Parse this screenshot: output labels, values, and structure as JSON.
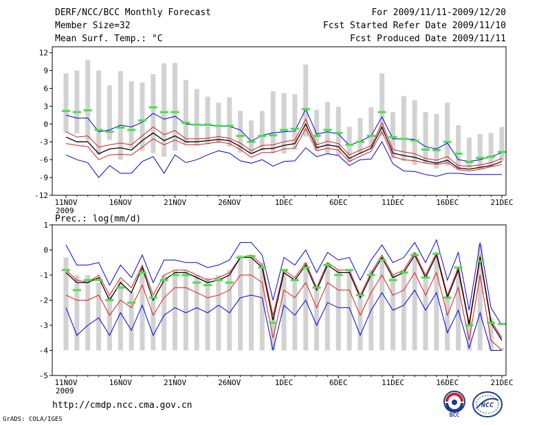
{
  "header": {
    "title": "DERF/NCC/BCC Monthly Forecast",
    "member_size": "Member Size=32",
    "variable1": "Mean Surf. Temp.: °C",
    "period": "For 2009/11/11-2009/12/20",
    "started": "Fcst Started Refer Date 2009/11/10",
    "produced": "Fcst Produced Date 2009/11/11"
  },
  "footer": {
    "url": "http://cmdp.ncc.cma.gov.cn",
    "credit": "GrADS: COLA/IGES",
    "logo_bcc": "BCC",
    "logo_ncc": "NCC"
  },
  "colors": {
    "bar": "#d2d2d2",
    "mean": "#000000",
    "spread": "#e01818",
    "envelope": "#0000e0",
    "clim": "#44e244"
  },
  "chart_data": [
    {
      "type": "line",
      "title": "Mean Surf. Temp.: °C",
      "ylim": [
        -12,
        13
      ],
      "yticks": [
        -12,
        -9,
        -6,
        -3,
        0,
        3,
        6,
        9,
        12
      ],
      "xticks": [
        {
          "day": 0,
          "label": "11NOV",
          "sub": "2009"
        },
        {
          "day": 5,
          "label": "16NOV"
        },
        {
          "day": 10,
          "label": "21NOV"
        },
        {
          "day": 15,
          "label": "26NOV"
        },
        {
          "day": 20,
          "label": "1DEC"
        },
        {
          "day": 25,
          "label": "6DEC"
        },
        {
          "day": 30,
          "label": "11DEC"
        },
        {
          "day": 35,
          "label": "16DEC"
        },
        {
          "day": 40,
          "label": "21DEC"
        }
      ],
      "bar_top": [
        8.5,
        9.0,
        10.8,
        9.0,
        6.5,
        8.9,
        7.2,
        7.0,
        8.4,
        10.2,
        10.3,
        7.4,
        5.9,
        4.6,
        3.6,
        4.5,
        2.2,
        0.6,
        2.2,
        5.5,
        5.2,
        5.0,
        10.0,
        2.4,
        3.7,
        2.9,
        -0.5,
        1.0,
        2.8,
        8.5,
        2.0,
        4.7,
        4.0,
        2.0,
        1.7,
        3.6,
        -0.2,
        -2.3,
        -1.7,
        -1.5,
        -0.5
      ],
      "bar_bottom": [
        -1.5,
        -1.6,
        -2.8,
        -5.2,
        -2.7,
        -6.0,
        -4.1,
        -4.5,
        -4.9,
        -5.5,
        -4.5,
        -3.3,
        -3.6,
        -3.4,
        -3.2,
        -3.8,
        -4.8,
        -5.0,
        -4.5,
        -4.9,
        -5.0,
        -4.3,
        -2.1,
        -4.5,
        -5.0,
        -5.3,
        -6.5,
        -5.0,
        -4.0,
        -2.0,
        -5.9,
        -6.2,
        -6.9,
        -6.6,
        -7.5,
        -7.0,
        -7.7,
        -7.4,
        -7.6,
        -7.0,
        -6.2
      ],
      "upper": [
        1.5,
        1.0,
        1.0,
        -1.3,
        -1.0,
        -0.2,
        -0.5,
        0.3,
        1.8,
        0.8,
        1.3,
        0.0,
        -0.2,
        -0.2,
        -0.3,
        -0.4,
        -1.0,
        -2.9,
        -1.9,
        -1.5,
        -1.3,
        -1.2,
        2.5,
        -1.7,
        -1.3,
        -1.7,
        -3.6,
        -2.9,
        -2.0,
        1.2,
        -2.5,
        -2.5,
        -2.6,
        -3.8,
        -4.2,
        -3.2,
        -6.0,
        -6.3,
        -6.0,
        -5.5,
        -4.8
      ],
      "red_upper": [
        -1.3,
        -2.2,
        -2.0,
        -3.9,
        -3.5,
        -3.2,
        -3.5,
        -2.0,
        -0.5,
        -1.8,
        -1.1,
        -2.5,
        -2.5,
        -2.4,
        -2.1,
        -2.4,
        -3.2,
        -4.5,
        -3.6,
        -3.5,
        -3.0,
        -2.7,
        0.8,
        -3.5,
        -2.9,
        -3.3,
        -5.2,
        -4.4,
        -3.7,
        0.2,
        -4.3,
        -4.7,
        -5.0,
        -5.8,
        -6.1,
        -5.5,
        -7.0,
        -7.1,
        -6.9,
        -6.5,
        -5.8
      ],
      "mean": [
        -2.2,
        -3.0,
        -3.0,
        -5.0,
        -4.2,
        -4.0,
        -4.4,
        -2.8,
        -1.5,
        -2.8,
        -2.0,
        -3.0,
        -3.0,
        -2.8,
        -2.6,
        -2.8,
        -3.8,
        -5.0,
        -4.2,
        -4.1,
        -3.6,
        -3.3,
        0.0,
        -4.0,
        -3.5,
        -3.8,
        -5.8,
        -4.9,
        -4.1,
        -0.5,
        -4.9,
        -5.3,
        -5.6,
        -6.2,
        -6.6,
        -6.1,
        -7.4,
        -7.6,
        -7.3,
        -7.0,
        -6.3
      ],
      "red_lower": [
        -3.3,
        -3.6,
        -3.8,
        -6.0,
        -5.2,
        -5.1,
        -5.2,
        -3.9,
        -2.5,
        -3.5,
        -2.7,
        -3.5,
        -3.5,
        -3.3,
        -3.0,
        -3.3,
        -4.3,
        -5.6,
        -4.8,
        -4.8,
        -4.2,
        -4.1,
        -0.8,
        -4.5,
        -4.1,
        -4.4,
        -6.3,
        -5.4,
        -4.6,
        -1.3,
        -5.5,
        -6.0,
        -6.2,
        -6.6,
        -6.8,
        -6.5,
        -7.7,
        -7.9,
        -7.6,
        -7.2,
        -6.8
      ],
      "lower": [
        -5.2,
        -6.0,
        -6.5,
        -9.0,
        -7.0,
        -8.3,
        -8.3,
        -6.3,
        -5.5,
        -8.3,
        -5.2,
        -6.5,
        -6.0,
        -5.2,
        -4.5,
        -4.9,
        -6.2,
        -6.6,
        -6.0,
        -7.1,
        -6.3,
        -6.2,
        -4.0,
        -5.5,
        -5.0,
        -5.3,
        -7.0,
        -6.0,
        -5.9,
        -3.0,
        -6.7,
        -7.9,
        -8.0,
        -8.5,
        -8.8,
        -8.3,
        -8.3,
        -8.5,
        -8.5,
        -8.5,
        -8.5
      ],
      "clim": [
        2.2,
        2.0,
        2.3,
        -1.0,
        -1.3,
        -0.6,
        -1.0,
        0.6,
        2.8,
        2.0,
        2.0,
        0.2,
        -0.1,
        -0.1,
        -0.3,
        -0.3,
        -2.0,
        -3.0,
        -2.0,
        -1.9,
        -1.0,
        -0.8,
        2.5,
        -2.0,
        -1.0,
        -1.5,
        -3.5,
        -3.0,
        -2.0,
        2.0,
        -2.2,
        -2.5,
        -2.8,
        -4.3,
        -4.4,
        -3.0,
        -5.0,
        -6.4,
        -5.7,
        -5.5,
        -4.7
      ]
    },
    {
      "type": "line",
      "title": "Prec.: log(mm/d)",
      "ylim": [
        -5,
        1
      ],
      "yticks": [
        -5,
        -4,
        -3,
        -2,
        -1,
        0,
        1
      ],
      "xticks": [
        {
          "day": 0,
          "label": "11NOV",
          "sub": "2009"
        },
        {
          "day": 5,
          "label": "16NOV"
        },
        {
          "day": 10,
          "label": "21NOV"
        },
        {
          "day": 15,
          "label": "26NOV"
        },
        {
          "day": 20,
          "label": "1DEC"
        },
        {
          "day": 25,
          "label": "6DEC"
        },
        {
          "day": 30,
          "label": "11DEC"
        },
        {
          "day": 35,
          "label": "16DEC"
        },
        {
          "day": 40,
          "label": "21DEC"
        }
      ],
      "bar_top": [
        -0.3,
        -1.0,
        -1.0,
        -1.3,
        -1.8,
        -1.2,
        -1.7,
        -0.8,
        -1.9,
        -1.0,
        -0.8,
        -0.8,
        -1.0,
        -1.1,
        -1.0,
        -0.8,
        -0.2,
        -0.2,
        -0.5,
        -2.6,
        -0.8,
        -1.1,
        -0.5,
        -1.5,
        -0.5,
        -0.8,
        -0.8,
        -1.8,
        -0.8,
        -0.3,
        -1.0,
        -0.8,
        -0.1,
        -1.0,
        -0.3,
        -1.8,
        -0.7,
        -2.8,
        0.2,
        -2.7,
        -3.9
      ],
      "bar_bottom": [
        -4.0,
        -4.0,
        -4.0,
        -4.0,
        -4.0,
        -4.0,
        -4.0,
        -4.0,
        -4.0,
        -4.0,
        -4.0,
        -4.0,
        -4.0,
        -4.0,
        -4.0,
        -4.0,
        -4.0,
        -4.0,
        -4.0,
        -4.0,
        -4.0,
        -4.0,
        -4.0,
        -4.0,
        -4.0,
        -4.0,
        -4.0,
        -4.0,
        -4.0,
        -4.0,
        -4.0,
        -4.0,
        -4.0,
        -4.0,
        -4.0,
        -4.0,
        -4.0,
        -4.0,
        -4.0,
        -4.0,
        -4.0
      ],
      "upper": [
        0.2,
        -0.6,
        -0.6,
        -0.5,
        -1.4,
        -0.6,
        -1.1,
        -0.2,
        -1.3,
        -0.4,
        -0.4,
        -0.5,
        -0.5,
        -0.7,
        -0.6,
        -0.4,
        0.3,
        0.3,
        -0.2,
        -2.0,
        -0.3,
        -0.6,
        0.0,
        -0.9,
        -0.1,
        -0.4,
        -0.3,
        -1.2,
        -0.4,
        0.2,
        -0.5,
        -0.3,
        0.3,
        -0.5,
        0.4,
        -1.2,
        -0.1,
        -2.4,
        0.3,
        -2.3,
        -3.0
      ],
      "red_upper": [
        -0.8,
        -1.2,
        -1.3,
        -1.0,
        -1.8,
        -1.1,
        -1.5,
        -0.6,
        -1.8,
        -1.0,
        -0.8,
        -0.8,
        -1.0,
        -1.2,
        -1.1,
        -0.9,
        -0.3,
        -0.2,
        -0.6,
        -2.6,
        -0.8,
        -1.1,
        -0.5,
        -1.5,
        -0.5,
        -0.8,
        -0.8,
        -1.8,
        -0.9,
        -0.2,
        -1.0,
        -0.8,
        -0.1,
        -1.0,
        -0.1,
        -1.8,
        -0.7,
        -2.9,
        -0.2,
        -2.8,
        -3.5
      ],
      "mean": [
        -0.9,
        -1.3,
        -1.3,
        -1.1,
        -2.0,
        -1.3,
        -1.7,
        -0.7,
        -2.0,
        -1.2,
        -0.9,
        -0.9,
        -1.1,
        -1.3,
        -1.2,
        -1.0,
        -0.3,
        -0.3,
        -0.7,
        -2.8,
        -0.9,
        -1.2,
        -0.6,
        -1.6,
        -0.6,
        -0.9,
        -0.9,
        -1.9,
        -1.0,
        -0.3,
        -1.1,
        -0.9,
        -0.2,
        -1.1,
        -0.2,
        -1.9,
        -0.8,
        -3.0,
        -0.3,
        -2.9,
        -3.6
      ],
      "red_lower": [
        -1.8,
        -2.0,
        -2.0,
        -1.8,
        -2.6,
        -2.0,
        -2.3,
        -1.4,
        -2.6,
        -1.9,
        -1.5,
        -1.5,
        -1.7,
        -1.9,
        -1.8,
        -1.6,
        -1.0,
        -1.0,
        -1.3,
        -3.5,
        -1.6,
        -1.9,
        -1.3,
        -2.3,
        -1.3,
        -1.6,
        -1.6,
        -2.6,
        -1.7,
        -1.0,
        -1.8,
        -1.6,
        -0.9,
        -1.8,
        -0.9,
        -2.6,
        -1.5,
        -3.6,
        -1.0,
        -3.6,
        -4.0
      ],
      "lower": [
        -2.3,
        -3.4,
        -3.0,
        -2.7,
        -3.4,
        -2.5,
        -3.2,
        -2.2,
        -3.4,
        -2.6,
        -2.3,
        -2.5,
        -2.3,
        -2.5,
        -2.2,
        -2.5,
        -1.9,
        -1.8,
        -1.9,
        -4.0,
        -2.2,
        -2.6,
        -2.0,
        -3.0,
        -2.1,
        -2.3,
        -2.3,
        -3.4,
        -2.4,
        -1.7,
        -2.4,
        -2.2,
        -1.6,
        -2.4,
        -1.7,
        -3.3,
        -2.4,
        -3.9,
        -2.5,
        -4.0,
        -4.0
      ],
      "clim": [
        -0.8,
        -1.6,
        -1.2,
        -1.2,
        -2.0,
        -1.5,
        -2.1,
        -0.9,
        -1.9,
        -1.2,
        -1.0,
        -1.0,
        -1.3,
        -1.4,
        -1.2,
        -1.3,
        -0.3,
        -0.25,
        -0.7,
        -2.9,
        -0.8,
        -1.2,
        -0.7,
        -1.5,
        -0.6,
        -1.0,
        -0.8,
        -1.8,
        -1.0,
        -0.4,
        -1.2,
        -0.9,
        -0.2,
        -1.1,
        -0.15,
        -1.9,
        -0.7,
        -3.0,
        -0.45,
        -2.9,
        -2.95
      ]
    }
  ]
}
